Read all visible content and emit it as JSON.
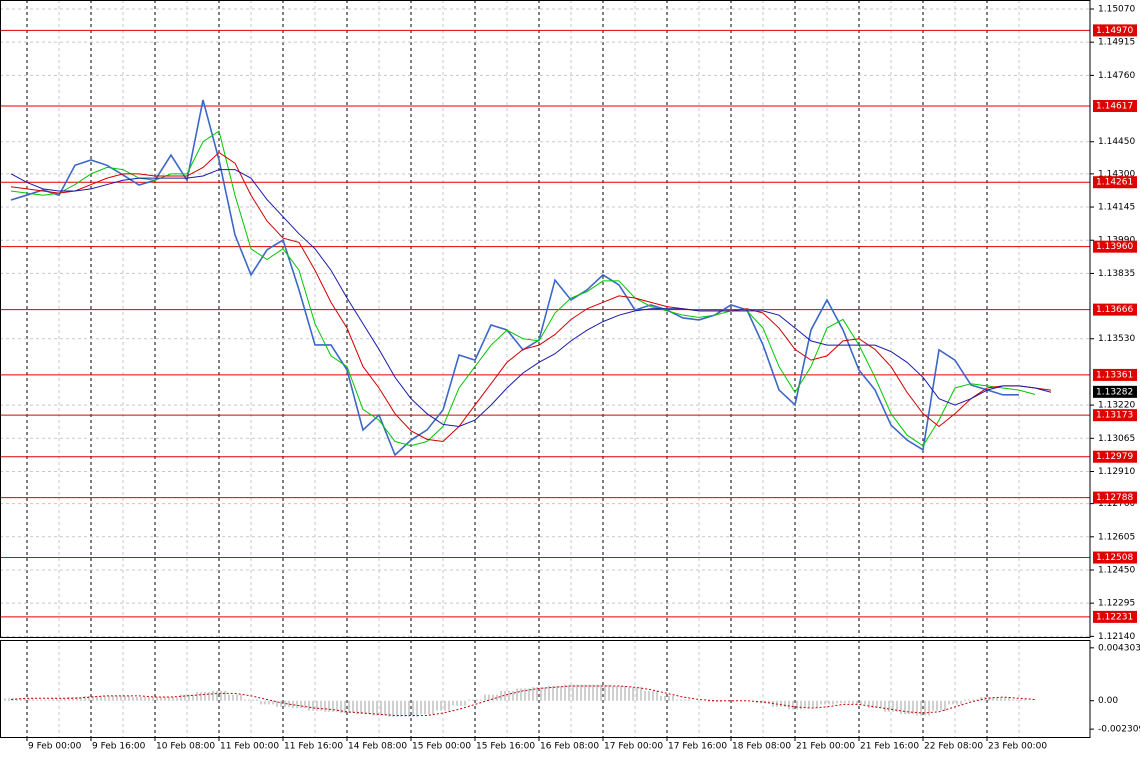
{
  "chart_data": [
    {
      "type": "line",
      "categories": [
        null,
        "9 Feb 00:00",
        null,
        null,
        null,
        "9 Feb 16:00",
        null,
        null,
        null,
        "10 Feb 08:00",
        null,
        null,
        null,
        "11 Feb 00:00",
        null,
        null,
        null,
        "11 Feb 16:00",
        null,
        null,
        null,
        "14 Feb 08:00",
        null,
        null,
        null,
        "15 Feb 00:00",
        null,
        null,
        null,
        "15 Feb 16:00",
        null,
        null,
        null,
        "16 Feb 08:00",
        null,
        null,
        null,
        "17 Feb 00:00",
        null,
        null,
        null,
        "17 Feb 16:00",
        null,
        null,
        null,
        "18 Feb 08:00",
        null,
        null,
        null,
        "21 Feb 00:00",
        null,
        null,
        null,
        "21 Feb 16:00",
        null,
        null,
        null,
        "22 Feb 08:00",
        null,
        null,
        null,
        "23 Feb 00:00",
        null,
        null,
        null,
        null
      ],
      "series": [
        {
          "color": "#3d67c9",
          "values": [
            1.14178,
            1.14201,
            1.14225,
            1.142,
            1.1434,
            1.14365,
            1.1434,
            1.14295,
            1.14248,
            1.1427,
            1.14388,
            1.1427,
            1.14645,
            1.14365,
            1.14015,
            1.13828,
            1.13945,
            1.13991,
            1.13758,
            1.13501,
            1.13501,
            1.13384,
            1.13104,
            1.13174,
            1.12987,
            1.13057,
            1.13104,
            1.13197,
            1.13454,
            1.1343,
            1.13594,
            1.13571,
            1.13478,
            1.13524,
            1.13804,
            1.13711,
            1.13758,
            1.13828,
            1.13781,
            1.13664,
            1.13688,
            1.13664,
            1.13627,
            1.13618,
            1.13641,
            1.13688,
            1.13664,
            1.13501,
            1.13291,
            1.13221,
            1.13571,
            1.13711,
            1.13571,
            1.13384,
            1.13291,
            1.13127,
            1.13057,
            1.13011,
            1.13478,
            1.1343,
            1.13314,
            1.13291,
            1.13268,
            1.13268,
            null,
            null
          ]
        },
        {
          "color": "#00c800",
          "values": [
            1.1422,
            1.1421,
            1.142,
            1.1421,
            1.1425,
            1.143,
            1.1433,
            1.1432,
            1.1428,
            1.1427,
            1.143,
            1.143,
            1.1445,
            1.145,
            1.142,
            1.1395,
            1.139,
            1.1395,
            1.1385,
            1.136,
            1.1345,
            1.134,
            1.132,
            1.1315,
            1.1305,
            1.1303,
            1.1305,
            1.1312,
            1.133,
            1.134,
            1.135,
            1.1357,
            1.1353,
            1.1352,
            1.1365,
            1.1372,
            1.1375,
            1.138,
            1.138,
            1.1372,
            1.1368,
            1.1366,
            1.1364,
            1.1363,
            1.1364,
            1.1366,
            1.1366,
            1.1358,
            1.134,
            1.1328,
            1.134,
            1.1358,
            1.1362,
            1.135,
            1.1335,
            1.1318,
            1.1308,
            1.1303,
            1.1315,
            1.133,
            1.1332,
            1.1331,
            1.133,
            1.1329,
            1.1327,
            null
          ]
        },
        {
          "color": "#d00000",
          "values": [
            1.1424,
            1.1423,
            1.1422,
            1.1421,
            1.1422,
            1.1425,
            1.1428,
            1.143,
            1.143,
            1.1429,
            1.1429,
            1.1429,
            1.1433,
            1.144,
            1.1435,
            1.142,
            1.1408,
            1.14,
            1.1398,
            1.1385,
            1.137,
            1.1358,
            1.134,
            1.133,
            1.1318,
            1.131,
            1.1306,
            1.1305,
            1.1312,
            1.1322,
            1.1332,
            1.1342,
            1.1348,
            1.135,
            1.1355,
            1.1362,
            1.1367,
            1.137,
            1.1373,
            1.1372,
            1.137,
            1.1368,
            1.1367,
            1.1366,
            1.1366,
            1.1366,
            1.1367,
            1.1365,
            1.1358,
            1.1348,
            1.1343,
            1.1345,
            1.1352,
            1.1353,
            1.1348,
            1.134,
            1.1328,
            1.1318,
            1.1312,
            1.1318,
            1.1325,
            1.133,
            1.1331,
            1.1331,
            1.133,
            1.1329
          ]
        },
        {
          "color": "#1a1aa8",
          "values": [
            1.143,
            1.1426,
            1.1423,
            1.1422,
            1.1422,
            1.1423,
            1.1425,
            1.1427,
            1.1428,
            1.1428,
            1.1428,
            1.1428,
            1.1429,
            1.1432,
            1.1432,
            1.1428,
            1.1418,
            1.141,
            1.1402,
            1.1395,
            1.1385,
            1.1372,
            1.136,
            1.1348,
            1.1335,
            1.1325,
            1.1318,
            1.1313,
            1.1312,
            1.1315,
            1.1322,
            1.133,
            1.1337,
            1.1342,
            1.1346,
            1.1352,
            1.1357,
            1.1361,
            1.1364,
            1.1366,
            1.1367,
            1.1367,
            1.1367,
            1.1366,
            1.1366,
            1.1366,
            1.1366,
            1.1366,
            1.1364,
            1.1358,
            1.1352,
            1.135,
            1.135,
            1.135,
            1.135,
            1.1347,
            1.1342,
            1.1335,
            1.1325,
            1.1322,
            1.1325,
            1.1329,
            1.1331,
            1.1331,
            1.133,
            1.1328
          ]
        }
      ],
      "ylim": [
        1.12137,
        1.15112
      ],
      "yticks": [
        {
          "value": 1.1507,
          "label": "1.15070"
        },
        {
          "value": 1.14915,
          "label": "1.14915"
        },
        {
          "value": 1.1476,
          "label": "1.14760"
        },
        {
          "value": 1.1445,
          "label": "1.14450"
        },
        {
          "value": 1.143,
          "label": "1.14300"
        },
        {
          "value": 1.14145,
          "label": "1.14145"
        },
        {
          "value": 1.1399,
          "label": "1.13990"
        },
        {
          "value": 1.13835,
          "label": "1.13835"
        },
        {
          "value": 1.1353,
          "label": "1.13530"
        },
        {
          "value": 1.1322,
          "label": "1.13220"
        },
        {
          "value": 1.13065,
          "label": "1.13065"
        },
        {
          "value": 1.1291,
          "label": "1.12910"
        },
        {
          "value": 1.1276,
          "label": "1.12760"
        },
        {
          "value": 1.12605,
          "label": "1.12605"
        },
        {
          "value": 1.1245,
          "label": "1.12450"
        },
        {
          "value": 1.12295,
          "label": "1.12295"
        },
        {
          "value": 1.1214,
          "label": "1.12140"
        }
      ],
      "levels_color": "#e00000",
      "levels": [
        {
          "value": 1.1497,
          "label": "1.14970"
        },
        {
          "value": 1.14617,
          "label": "1.14617"
        },
        {
          "value": 1.14261,
          "label": "1.14261"
        },
        {
          "value": 1.1396,
          "label": "1.13960"
        },
        {
          "value": 1.13666,
          "label": "1.13666"
        },
        {
          "value": 1.13361,
          "label": "1.13361"
        },
        {
          "value": 1.13173,
          "label": "1.13173"
        },
        {
          "value": 1.12979,
          "label": "1.12979"
        },
        {
          "value": 1.12788,
          "label": "1.12788"
        },
        {
          "value": 1.12508,
          "label": "1.12508"
        },
        {
          "value": 1.12231,
          "label": "1.12231"
        }
      ],
      "last_price": {
        "value": 1.13282,
        "label": "1.13282"
      },
      "grid": true
    },
    {
      "type": "bar",
      "series": [
        {
          "type": "bar",
          "color": "#a0a0a0",
          "values": [
            0.0002,
            0.0002,
            0.0001,
            0.0002,
            0.0003,
            0.0004,
            0.0004,
            0.0004,
            0.0003,
            0.0003,
            0.0003,
            0.0005,
            0.0007,
            0.0008,
            0.0005,
            0.0001,
            -0.0003,
            -0.0005,
            -0.0006,
            -0.0008,
            -0.0009,
            -0.001,
            -0.0011,
            -0.0012,
            -0.0013,
            -0.0013,
            -0.0011,
            -0.0008,
            -0.0004,
            0.0001,
            0.0005,
            0.0008,
            0.001,
            0.0011,
            0.0012,
            0.0013,
            0.0013,
            0.0013,
            0.0012,
            0.0011,
            0.0008,
            0.0004,
            0.0001,
            0,
            -0.0001,
            0,
            0,
            -0.0002,
            -0.0005,
            -0.0007,
            -0.0006,
            -0.0003,
            -0.0002,
            -0.0003,
            -0.0006,
            -0.0009,
            -0.0011,
            -0.0012,
            -0.0008,
            -0.0003,
            0.0001,
            0.0003,
            0.0003,
            0.0001,
            null,
            null
          ]
        },
        {
          "type": "line",
          "style": "dotted",
          "color": "#c00000",
          "values": [
            0.0001,
            0.0002,
            0.0002,
            0.0002,
            0.0002,
            0.0003,
            0.0004,
            0.0004,
            0.0004,
            0.0003,
            0.0003,
            0.0004,
            0.0005,
            0.0006,
            0.0006,
            0.0004,
            0.0001,
            -0.0002,
            -0.0004,
            -0.0006,
            -0.0007,
            -0.0009,
            -0.001,
            -0.0011,
            -0.0012,
            -0.0012,
            -0.0012,
            -0.001,
            -0.0007,
            -0.0003,
            0.0001,
            0.0005,
            0.0008,
            0.001,
            0.0011,
            0.0012,
            0.0012,
            0.0012,
            0.0012,
            0.0011,
            0.0009,
            0.0006,
            0.0003,
            0.0001,
            0,
            0,
            0,
            -0.0001,
            -0.0003,
            -0.0005,
            -0.0006,
            -0.0005,
            -0.0003,
            -0.0003,
            -0.0005,
            -0.0007,
            -0.0009,
            -0.001,
            -0.0009,
            -0.0005,
            -0.0001,
            0.0002,
            0.0003,
            0.0002,
            0.0001,
            null
          ]
        }
      ],
      "ylim": [
        -0.00295,
        0.00494
      ],
      "yticks": [
        0.004303,
        {
          "value": 0,
          "label": "0.00"
        },
        -0.002309
      ]
    }
  ]
}
